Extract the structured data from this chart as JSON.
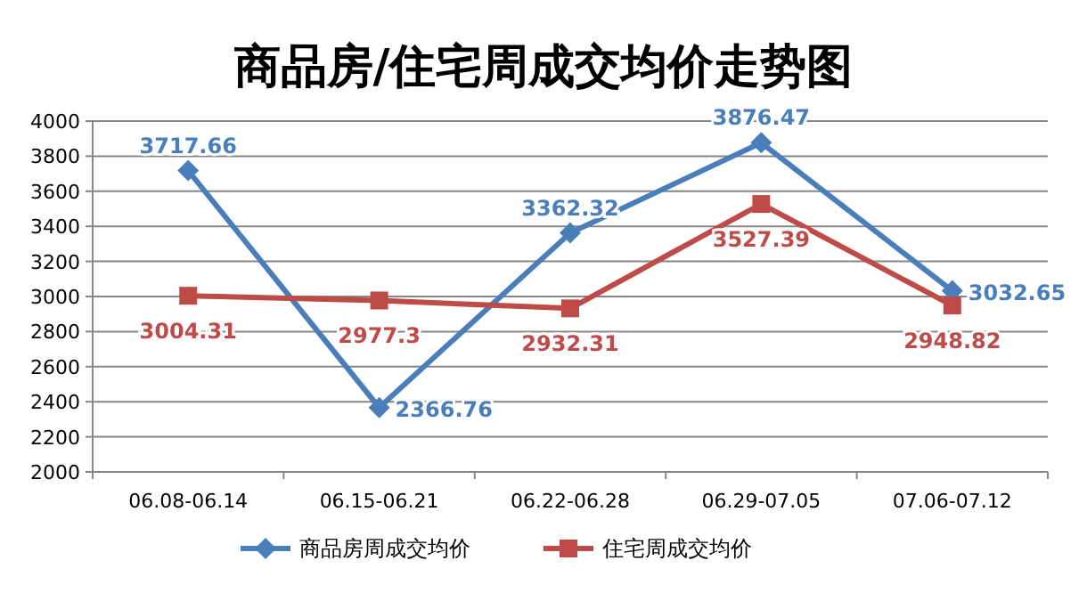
{
  "chart_data": {
    "type": "line",
    "title": "商品房/住宅周成交均价走势图",
    "categories": [
      "06.08-06.14",
      "06.15-06.21",
      "06.22-06.28",
      "06.29-07.05",
      "07.06-07.12"
    ],
    "series": [
      {
        "name": "商品房周成交均价",
        "color": "#4a7ebb",
        "marker": "diamond",
        "values": [
          3717.66,
          2366.76,
          3362.32,
          3876.47,
          3032.65
        ]
      },
      {
        "name": "住宅周成交均价",
        "color": "#be4b48",
        "marker": "square",
        "values": [
          3004.31,
          2977.3,
          2932.31,
          3527.39,
          2948.82
        ]
      }
    ],
    "ylim": [
      2000,
      4000
    ],
    "yticks": [
      2000,
      2200,
      2400,
      2600,
      2800,
      3000,
      3200,
      3400,
      3600,
      3800,
      4000
    ],
    "grid": "y",
    "legend": "bottom",
    "data_labels": true
  }
}
